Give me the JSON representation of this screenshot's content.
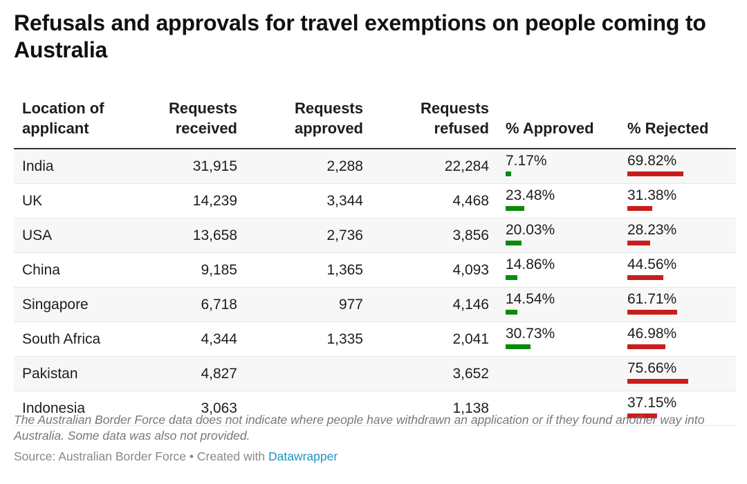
{
  "title": "Refusals and approvals for travel exemptions on people coming to Australia",
  "chart_data": {
    "type": "table",
    "columns": [
      "Location of applicant",
      "Requests received",
      "Requests approved",
      "Requests refused",
      "% Approved",
      "% Rejected"
    ],
    "rows": [
      {
        "location": "India",
        "received": "31,915",
        "approved": "2,288",
        "refused": "22,284",
        "pct_approved": "7.17%",
        "pct_rejected": "69.82%",
        "approved_value": 7.17,
        "rejected_value": 69.82
      },
      {
        "location": "UK",
        "received": "14,239",
        "approved": "3,344",
        "refused": "4,468",
        "pct_approved": "23.48%",
        "pct_rejected": "31.38%",
        "approved_value": 23.48,
        "rejected_value": 31.38
      },
      {
        "location": "USA",
        "received": "13,658",
        "approved": "2,736",
        "refused": "3,856",
        "pct_approved": "20.03%",
        "pct_rejected": "28.23%",
        "approved_value": 20.03,
        "rejected_value": 28.23
      },
      {
        "location": "China",
        "received": "9,185",
        "approved": "1,365",
        "refused": "4,093",
        "pct_approved": "14.86%",
        "pct_rejected": "44.56%",
        "approved_value": 14.86,
        "rejected_value": 44.56
      },
      {
        "location": "Singapore",
        "received": "6,718",
        "approved": "977",
        "refused": "4,146",
        "pct_approved": "14.54%",
        "pct_rejected": "61.71%",
        "approved_value": 14.54,
        "rejected_value": 61.71
      },
      {
        "location": "South Africa",
        "received": "4,344",
        "approved": "1,335",
        "refused": "2,041",
        "pct_approved": "30.73%",
        "pct_rejected": "46.98%",
        "approved_value": 30.73,
        "rejected_value": 46.98
      },
      {
        "location": "Pakistan",
        "received": "4,827",
        "approved": "",
        "refused": "3,652",
        "pct_approved": "",
        "pct_rejected": "75.66%",
        "approved_value": null,
        "rejected_value": 75.66
      },
      {
        "location": "Indonesia",
        "received": "3,063",
        "approved": "",
        "refused": "1,138",
        "pct_approved": "",
        "pct_rejected": "37.15%",
        "approved_value": null,
        "rejected_value": 37.15
      }
    ],
    "bar_colors": {
      "approved": "#0b8a0b",
      "rejected": "#c91d1d"
    }
  },
  "notes": "The Australian Border Force data does not indicate where people have withdrawn an application or if they found another way into Australia. Some data was also not provided.",
  "source": {
    "prefix": "Source: Australian Border Force • Created with ",
    "link": "Datawrapper"
  }
}
